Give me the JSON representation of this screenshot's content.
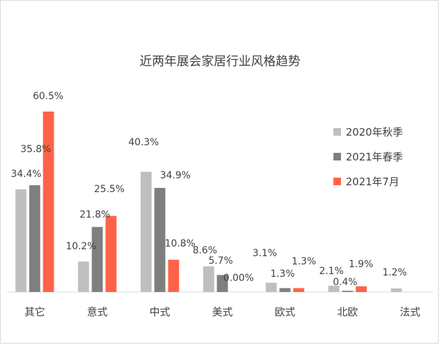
{
  "chart_data": {
    "type": "bar",
    "title": "近两年展会家居行业风格趋势",
    "categories": [
      "其它",
      "意式",
      "中式",
      "美式",
      "欧式",
      "北欧",
      "法式"
    ],
    "series": [
      {
        "name": "2020年秋季",
        "color": "#bfbfbf",
        "values": [
          34.4,
          10.2,
          40.3,
          8.6,
          3.1,
          2.1,
          1.2
        ],
        "labels": [
          "34.4%",
          "10.2%",
          "40.3%",
          "8.6%",
          "3.1%",
          "2.1%",
          "1.2%"
        ]
      },
      {
        "name": "2021年春季",
        "color": "#7f7f7f",
        "values": [
          35.8,
          21.8,
          34.9,
          5.7,
          1.3,
          0.4,
          null
        ],
        "labels": [
          "35.8%",
          "21.8%",
          "34.9%",
          "5.7%",
          "1.3%",
          "0.4%",
          null
        ]
      },
      {
        "name": "2021年7月",
        "color": "#ff6347",
        "values": [
          60.5,
          25.5,
          10.8,
          0.0,
          1.3,
          1.9,
          null
        ],
        "labels": [
          "60.5%",
          "25.5%",
          "10.8%",
          "0.00%",
          "1.3%",
          "1.9%",
          null
        ]
      }
    ],
    "ylim": [
      0,
      60.5
    ],
    "grid": false,
    "legend_position": "right"
  }
}
